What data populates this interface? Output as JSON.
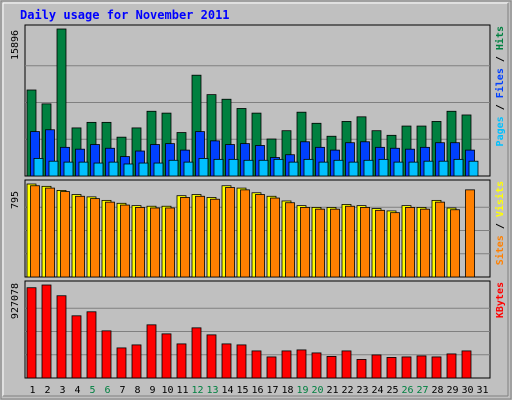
{
  "chart_data": {
    "type": "bar",
    "title": "Daily usage for November 2011",
    "categories": [
      "1",
      "2",
      "3",
      "4",
      "5",
      "6",
      "7",
      "8",
      "9",
      "10",
      "11",
      "12",
      "13",
      "14",
      "15",
      "16",
      "17",
      "18",
      "19",
      "20",
      "21",
      "22",
      "23",
      "24",
      "25",
      "26",
      "27",
      "28",
      "29",
      "30",
      "31"
    ],
    "weekend_days": [
      "5",
      "6",
      "12",
      "13",
      "19",
      "20",
      "26",
      "27"
    ],
    "panels": [
      {
        "id": "hits",
        "max_label": "15896",
        "ylim": [
          0,
          15896
        ],
        "legend": [
          {
            "label": "Pages",
            "color": "#00c0ff"
          },
          {
            "label": "Files",
            "color": "#0040ff"
          },
          {
            "label": "Hits",
            "color": "#008040"
          }
        ],
        "series": [
          {
            "name": "Hits",
            "color": "#008040",
            "values": [
              9300,
              7800,
              15896,
              5200,
              5800,
              5800,
              4200,
              5200,
              7000,
              6800,
              4700,
              10900,
              8800,
              8300,
              7300,
              6800,
              4000,
              4900,
              6900,
              5700,
              4300,
              5900,
              6400,
              4900,
              4400,
              5400,
              5400,
              5900,
              7000,
              6600,
              0
            ]
          },
          {
            "name": "Files",
            "color": "#0040ff",
            "values": [
              4800,
              5000,
              3100,
              2900,
              3400,
              3000,
              2100,
              2700,
              3400,
              3500,
              2800,
              4800,
              3800,
              3400,
              3500,
              3300,
              2000,
              2300,
              3700,
              3100,
              2800,
              3600,
              3700,
              3100,
              3000,
              2900,
              3100,
              3600,
              3600,
              2800,
              0
            ]
          },
          {
            "name": "Pages",
            "color": "#00c0ff",
            "values": [
              1900,
              1600,
              1500,
              1500,
              1400,
              1500,
              1300,
              1400,
              1400,
              1700,
              1500,
              1900,
              1800,
              1800,
              1700,
              1700,
              1800,
              1500,
              1800,
              1500,
              1700,
              1500,
              1700,
              1800,
              1500,
              1500,
              1600,
              1600,
              1800,
              1600,
              0
            ]
          }
        ]
      },
      {
        "id": "visits",
        "max_label": "795",
        "ylim": [
          0,
          795
        ],
        "legend": [
          {
            "label": "Sites",
            "color": "#ff8000"
          },
          {
            "label": "Visits",
            "color": "#ffff00"
          }
        ],
        "series": [
          {
            "name": "Visits",
            "color": "#ffff00",
            "values": [
              795,
              775,
              740,
              705,
              685,
              655,
              630,
              610,
              605,
              605,
              695,
              705,
              680,
              780,
              760,
              720,
              690,
              650,
              610,
              595,
              595,
              620,
              610,
              585,
              565,
              610,
              595,
              655,
              590,
              0,
              0
            ]
          },
          {
            "name": "Sites",
            "color": "#ff8000",
            "values": [
              780,
              760,
              730,
              690,
              670,
              640,
              615,
              595,
              590,
              590,
              680,
              690,
              665,
              765,
              745,
              705,
              675,
              635,
              595,
              580,
              580,
              605,
              595,
              570,
              550,
              595,
              580,
              640,
              575,
              745,
              0
            ]
          }
        ]
      },
      {
        "id": "kbytes",
        "max_label": "927078",
        "ylim": [
          0,
          927078
        ],
        "legend": [
          {
            "label": "KBytes",
            "color": "#ff0000"
          }
        ],
        "series": [
          {
            "name": "KBytes",
            "color": "#ff0000",
            "values": [
              900000,
              927078,
              820000,
              620000,
              660000,
              470000,
              300000,
              330000,
              530000,
              440000,
              340000,
              500000,
              430000,
              340000,
              330000,
              270000,
              210000,
              270000,
              280000,
              250000,
              215000,
              270000,
              185000,
              230000,
              205000,
              210000,
              220000,
              210000,
              240000,
              270000,
              0
            ]
          }
        ]
      }
    ],
    "legend_placement": "right",
    "grid": true
  }
}
